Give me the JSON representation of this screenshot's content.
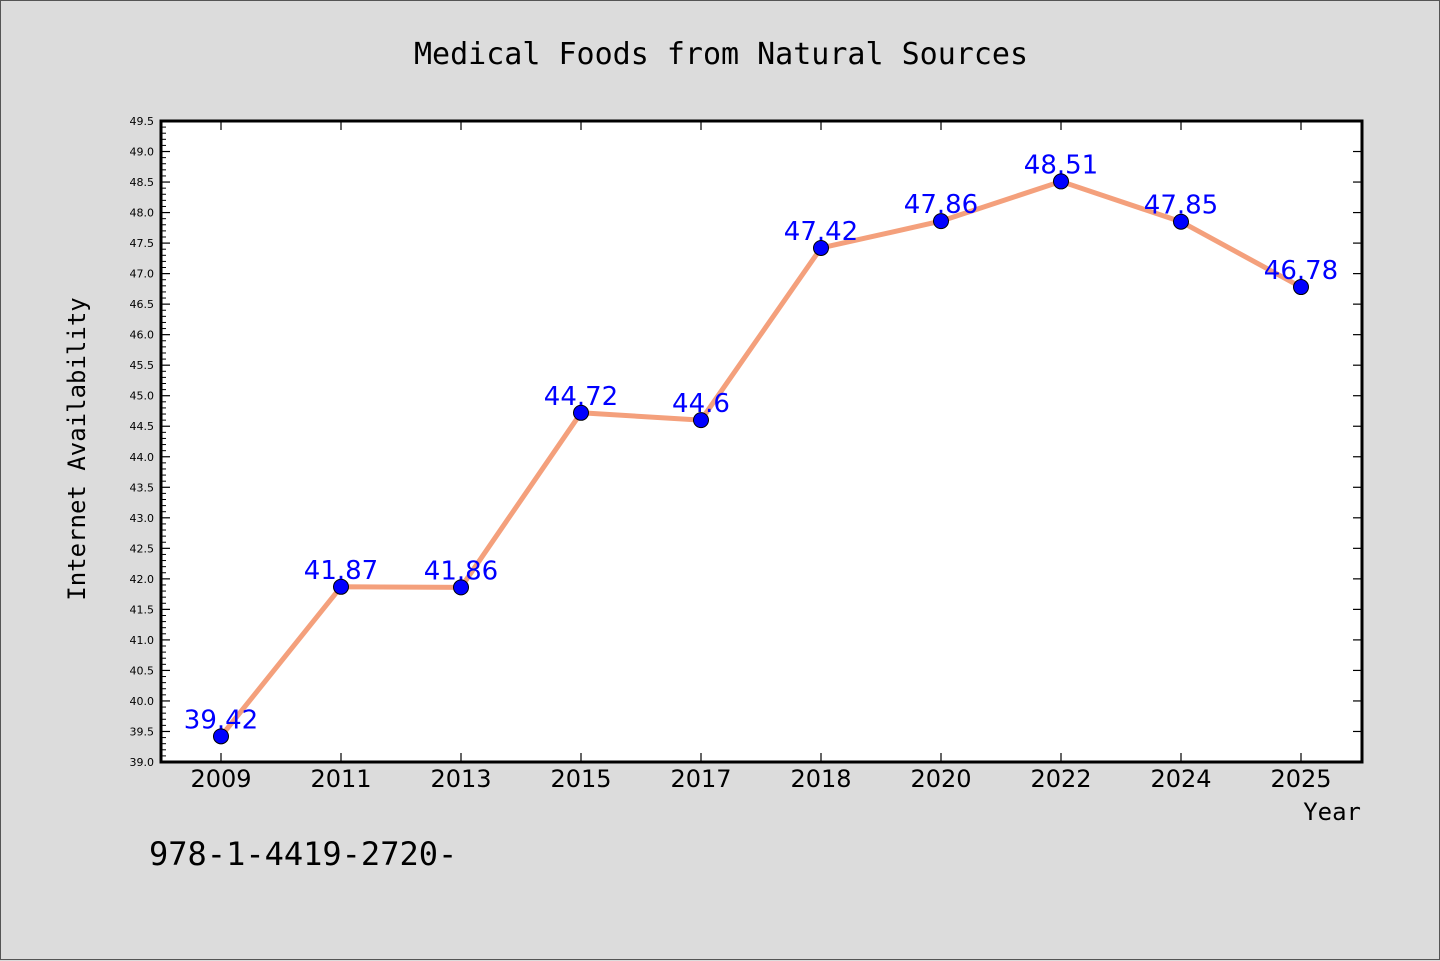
{
  "footer_text": "978-1-4419-2720-",
  "colors": {
    "background": "#dcdcdc",
    "plot_bg": "#ffffff",
    "line": "#f4a07c",
    "marker": "#0000ff",
    "labels": "#0000ff"
  },
  "chart_data": {
    "type": "line",
    "title": "Medical Foods from Natural Sources",
    "xlabel": "Year",
    "ylabel": "Internet Availability",
    "categories": [
      "2009",
      "2011",
      "2013",
      "2015",
      "2017",
      "2018",
      "2020",
      "2022",
      "2024",
      "2025"
    ],
    "values": [
      39.42,
      41.87,
      41.86,
      44.72,
      44.6,
      47.42,
      47.86,
      48.51,
      47.85,
      46.78
    ],
    "data_labels": [
      "39.42",
      "41.87",
      "41.86",
      "44.72",
      "44.6",
      "47.42",
      "47.86",
      "48.51",
      "47.85",
      "46.78"
    ],
    "ylim": [
      39.0,
      49.5
    ],
    "yticks": [
      "39.0",
      "39.5",
      "40.0",
      "40.5",
      "41.0",
      "41.5",
      "42.0",
      "42.5",
      "43.0",
      "43.5",
      "44.0",
      "44.5",
      "45.0",
      "45.5",
      "46.0",
      "46.5",
      "47.0",
      "47.5",
      "48.0",
      "48.5",
      "49.0",
      "49.5"
    ],
    "grid": false,
    "legend": "none"
  }
}
